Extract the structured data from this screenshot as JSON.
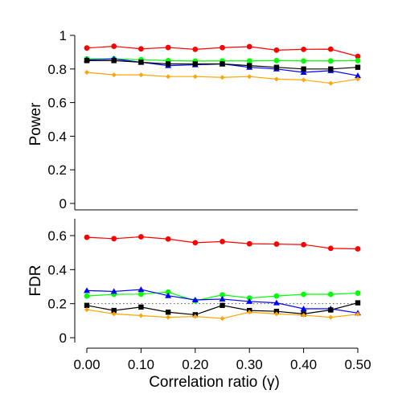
{
  "chart_data": [
    {
      "type": "line",
      "panel": "top",
      "title": "",
      "xlabel": "",
      "ylabel": "Power",
      "ylim": [
        0,
        1
      ],
      "yticks": [
        "0",
        "0.2",
        "0.4",
        "0.6",
        "0.8",
        "1"
      ],
      "xlim": [
        0,
        0.5
      ],
      "x": [
        0,
        0.05,
        0.1,
        0.15,
        0.2,
        0.25,
        0.3,
        0.35,
        0.4,
        0.45,
        0.5
      ],
      "grid": false,
      "series": [
        {
          "color": "#ff0000",
          "marker": "circle",
          "values": [
            0.925,
            0.935,
            0.92,
            0.928,
            0.917,
            0.927,
            0.933,
            0.912,
            0.917,
            0.918,
            0.875
          ]
        },
        {
          "color": "#00ff00",
          "marker": "circle",
          "values": [
            0.86,
            0.86,
            0.855,
            0.85,
            0.847,
            0.848,
            0.848,
            0.85,
            0.848,
            0.848,
            0.85
          ]
        },
        {
          "color": "#0000ff",
          "marker": "triangle",
          "values": [
            0.855,
            0.86,
            0.84,
            0.82,
            0.825,
            0.83,
            0.81,
            0.8,
            0.78,
            0.79,
            0.76
          ]
        },
        {
          "color": "#000000",
          "marker": "square",
          "values": [
            0.85,
            0.85,
            0.84,
            0.83,
            0.83,
            0.83,
            0.82,
            0.81,
            0.8,
            0.8,
            0.81
          ]
        },
        {
          "color": "#ffa500",
          "marker": "diamond",
          "values": [
            0.78,
            0.765,
            0.765,
            0.755,
            0.755,
            0.75,
            0.755,
            0.74,
            0.735,
            0.715,
            0.74
          ]
        }
      ]
    },
    {
      "type": "line",
      "panel": "bottom",
      "title": "",
      "xlabel": "Correlation ratio (γ)",
      "ylabel": "FDR",
      "ylim": [
        0,
        0.7
      ],
      "yticks": [
        "0",
        "0.2",
        "0.4",
        "0.6"
      ],
      "xlim": [
        0,
        0.5
      ],
      "xticks": [
        "0.00",
        "0.10",
        "0.20",
        "0.30",
        "0.40",
        "0.50"
      ],
      "x": [
        0,
        0.05,
        0.1,
        0.15,
        0.2,
        0.25,
        0.3,
        0.35,
        0.4,
        0.45,
        0.5
      ],
      "reference_line": 0.2,
      "grid": false,
      "series": [
        {
          "color": "#ff0000",
          "marker": "circle",
          "values": [
            0.59,
            0.582,
            0.593,
            0.58,
            0.558,
            0.565,
            0.552,
            0.55,
            0.547,
            0.525,
            0.522
          ]
        },
        {
          "color": "#00ff00",
          "marker": "circle",
          "values": [
            0.245,
            0.255,
            0.256,
            0.268,
            0.217,
            0.252,
            0.233,
            0.245,
            0.255,
            0.255,
            0.262
          ]
        },
        {
          "color": "#0000ff",
          "marker": "triangle",
          "values": [
            0.277,
            0.272,
            0.283,
            0.247,
            0.222,
            0.227,
            0.213,
            0.205,
            0.17,
            0.17,
            0.145
          ]
        },
        {
          "color": "#000000",
          "marker": "square",
          "values": [
            0.19,
            0.16,
            0.18,
            0.15,
            0.135,
            0.19,
            0.16,
            0.155,
            0.14,
            0.163,
            0.205
          ]
        },
        {
          "color": "#ffa500",
          "marker": "diamond",
          "values": [
            0.165,
            0.14,
            0.13,
            0.12,
            0.125,
            0.113,
            0.15,
            0.14,
            0.132,
            0.12,
            0.138
          ]
        }
      ]
    }
  ]
}
